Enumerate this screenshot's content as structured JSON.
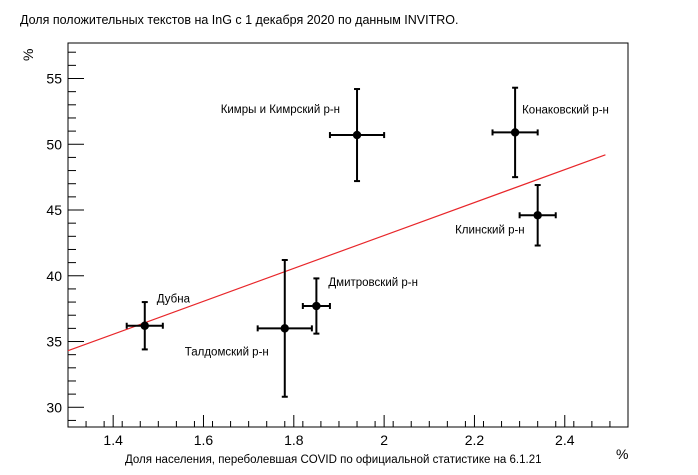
{
  "chart_data": {
    "type": "scatter",
    "title": "Доля положительных текстов на InG с 1 декабря 2020 по данным INVITRO.",
    "xlabel": "Доля населения, переболевшая COVID по официальной статистике на 6.1.21",
    "ylabel": "",
    "x_unit": "%",
    "y_unit": "%",
    "xlim": [
      1.3,
      2.54
    ],
    "ylim": [
      28.5,
      57.7
    ],
    "x_ticks": [
      1.4,
      1.6,
      1.8,
      2,
      2.2,
      2.4
    ],
    "x_tick_labels": [
      "1.4",
      "1.6",
      "1.8",
      "2",
      "2.2",
      "2.4"
    ],
    "y_ticks": [
      30,
      35,
      40,
      45,
      50,
      55
    ],
    "y_tick_labels": [
      "30",
      "35",
      "40",
      "45",
      "50",
      "55"
    ],
    "grid": false,
    "points": [
      {
        "label": "Дубна",
        "x": 1.47,
        "y": 36.2,
        "xerr": 0.04,
        "yerr_low": 1.8,
        "yerr_high": 1.8,
        "label_side": "right"
      },
      {
        "label": "Талдомский р-н",
        "x": 1.78,
        "y": 36.0,
        "xerr": 0.06,
        "yerr_low": 5.2,
        "yerr_high": 5.2,
        "label_side": "left-below"
      },
      {
        "label": "Дмитровский р-н",
        "x": 1.85,
        "y": 37.7,
        "xerr": 0.03,
        "yerr_low": 2.1,
        "yerr_high": 2.1,
        "label_side": "right-above"
      },
      {
        "label": "Кимры и Кимрский р-н",
        "x": 1.94,
        "y": 50.7,
        "xerr": 0.06,
        "yerr_low": 3.5,
        "yerr_high": 3.5,
        "label_side": "left-above"
      },
      {
        "label": "Конаковский р-н",
        "x": 2.29,
        "y": 50.9,
        "xerr": 0.05,
        "yerr_low": 3.4,
        "yerr_high": 3.4,
        "label_side": "right-above"
      },
      {
        "label": "Клинский р-н",
        "x": 2.34,
        "y": 44.6,
        "xerr": 0.04,
        "yerr_low": 2.3,
        "yerr_high": 2.3,
        "label_side": "left-below"
      }
    ],
    "fit_line": {
      "x": [
        1.3,
        2.49
      ],
      "y": [
        34.3,
        49.2
      ],
      "color": "#e8262a"
    },
    "colors": {
      "points": "#000000",
      "fit": "#e8262a",
      "axes": "#000000"
    }
  }
}
